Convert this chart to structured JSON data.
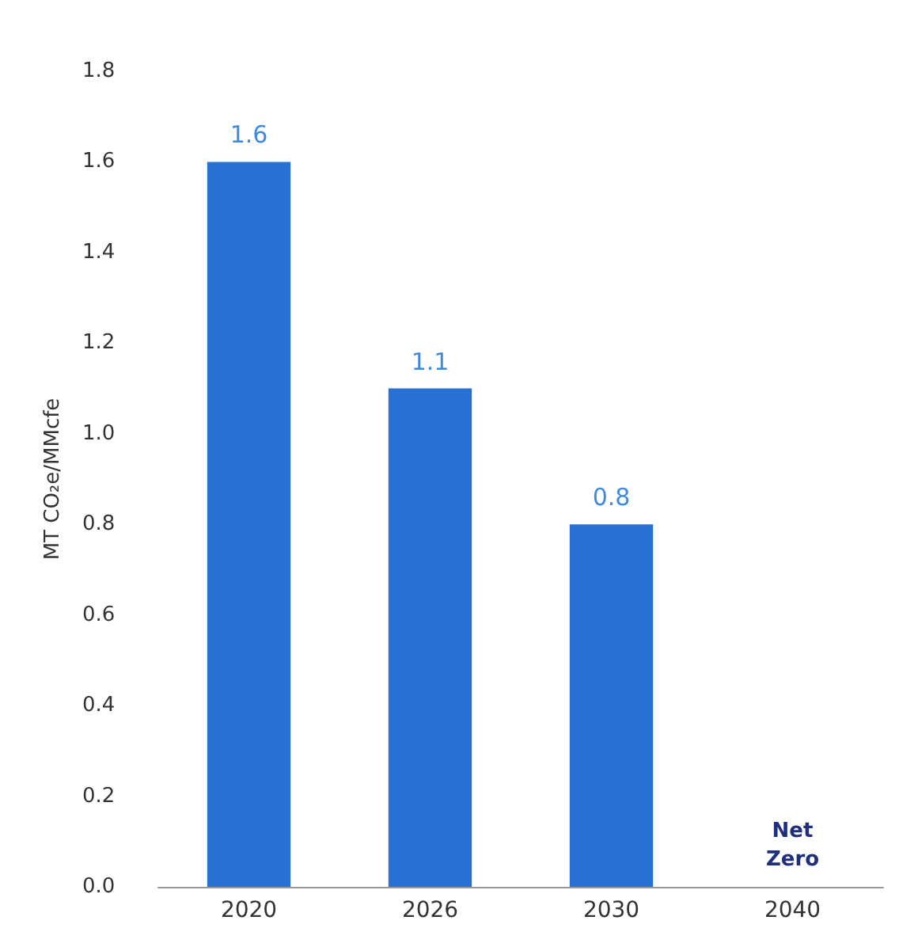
{
  "chart_data": {
    "type": "bar",
    "ylabel": "MT CO₂e/MMcfe",
    "categories": [
      "2020",
      "2026",
      "2030",
      "2040"
    ],
    "values": [
      1.6,
      1.1,
      0.8,
      0
    ],
    "value_labels": [
      "1.6",
      "1.1",
      "0.8",
      "Net Zero"
    ],
    "color": "#2870d2",
    "ylim": [
      0,
      1.8
    ],
    "yticks": [
      {
        "value": 0,
        "label": "0.0"
      },
      0.2,
      0.4,
      0.6,
      0.8,
      {
        "value": 1,
        "label": "1.0"
      },
      1.2,
      1.4,
      1.6,
      1.8
    ],
    "grid": false
  }
}
